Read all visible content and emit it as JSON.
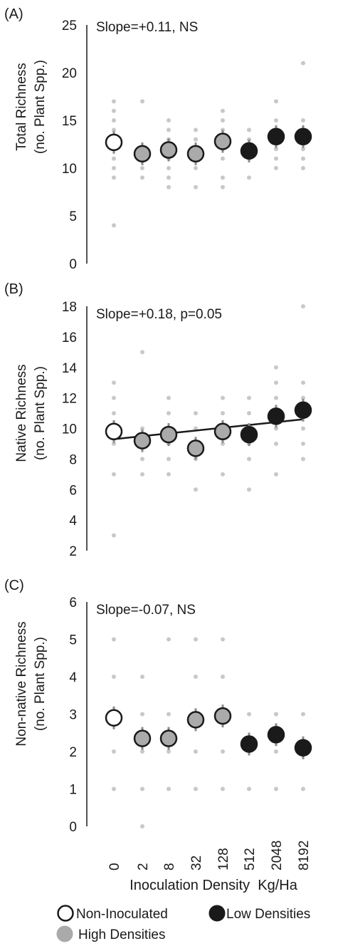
{
  "chart_data": [
    {
      "type": "scatter",
      "panel_label": "(A)",
      "ylabel_line1": "Total Richness",
      "ylabel_line2": "(no. Plant Spp.)",
      "annotation": "Slope=+0.11, NS",
      "ylim": [
        0,
        25
      ],
      "yticks": [
        "0",
        "5",
        "10",
        "15",
        "20",
        "25"
      ],
      "ytick_values": [
        0,
        5,
        10,
        15,
        20,
        25
      ],
      "categories": [
        "0",
        "2",
        "8",
        "32",
        "128",
        "512",
        "2048",
        "8192"
      ],
      "means": [
        12.7,
        11.5,
        11.9,
        11.5,
        12.8,
        11.8,
        13.3,
        13.3
      ],
      "groups": [
        "Non-Inoculated",
        "High Densities",
        "High Densities",
        "High Densities",
        "High Densities",
        "Low Densities",
        "Low Densities",
        "Low Densities"
      ],
      "raw_points": [
        [
          17,
          16,
          15,
          14,
          13,
          12,
          11,
          10,
          9,
          4
        ],
        [
          17,
          12,
          11,
          10,
          9
        ],
        [
          15,
          14,
          13,
          12,
          11,
          10,
          9,
          8
        ],
        [
          14,
          13,
          12,
          11,
          10,
          8
        ],
        [
          16,
          15,
          14,
          13,
          12,
          11,
          9,
          8
        ],
        [
          14,
          13,
          12,
          11,
          9
        ],
        [
          17,
          15,
          14,
          13,
          12,
          11,
          10
        ],
        [
          21,
          15,
          14,
          13,
          12,
          11,
          10
        ]
      ],
      "trendline": null
    },
    {
      "type": "scatter",
      "panel_label": "(B)",
      "ylabel_line1": "Native Richness",
      "ylabel_line2": "(no. Plant Spp.)",
      "annotation": "Slope=+0.18, p=0.05",
      "ylim": [
        2,
        18
      ],
      "yticks": [
        "2",
        "4",
        "6",
        "8",
        "10",
        "12",
        "14",
        "16",
        "18"
      ],
      "ytick_values": [
        2,
        4,
        6,
        8,
        10,
        12,
        14,
        16,
        18
      ],
      "categories": [
        "0",
        "2",
        "8",
        "32",
        "128",
        "512",
        "2048",
        "8192"
      ],
      "means": [
        9.8,
        9.2,
        9.6,
        8.7,
        9.8,
        9.6,
        10.8,
        11.2
      ],
      "groups": [
        "Non-Inoculated",
        "High Densities",
        "High Densities",
        "High Densities",
        "High Densities",
        "Low Densities",
        "Low Densities",
        "Low Densities"
      ],
      "raw_points": [
        [
          13,
          12,
          11,
          10,
          9,
          7,
          3
        ],
        [
          15,
          10,
          9,
          8,
          7
        ],
        [
          12,
          11,
          10,
          9,
          8,
          7
        ],
        [
          11,
          10,
          9,
          8,
          6
        ],
        [
          12,
          11,
          10,
          9,
          7
        ],
        [
          12,
          11,
          10,
          9,
          8,
          6
        ],
        [
          14,
          13,
          12,
          11,
          10,
          9,
          7
        ],
        [
          18,
          13,
          12,
          11,
          10,
          9,
          8
        ]
      ],
      "trendline": [
        9.3,
        10.6
      ]
    },
    {
      "type": "scatter",
      "panel_label": "(C)",
      "ylabel_line1": "Non-native Richness",
      "ylabel_line2": "(no. Plant Spp.)",
      "annotation": "Slope=-0.07, NS",
      "ylim": [
        0,
        6
      ],
      "yticks": [
        "0",
        "1",
        "2",
        "3",
        "4",
        "5",
        "6"
      ],
      "ytick_values": [
        0,
        1,
        2,
        3,
        4,
        5,
        6
      ],
      "categories": [
        "0",
        "2",
        "8",
        "32",
        "128",
        "512",
        "2048",
        "8192"
      ],
      "means": [
        2.9,
        2.35,
        2.35,
        2.85,
        2.95,
        2.2,
        2.45,
        2.1
      ],
      "groups": [
        "Non-Inoculated",
        "High Densities",
        "High Densities",
        "High Densities",
        "High Densities",
        "Low Densities",
        "Low Densities",
        "Low Densities"
      ],
      "raw_points": [
        [
          5,
          4,
          2,
          1
        ],
        [
          4,
          3,
          2,
          1,
          0
        ],
        [
          5,
          3,
          2,
          1
        ],
        [
          5,
          4,
          3,
          2,
          1
        ],
        [
          5,
          4,
          3,
          2,
          1
        ],
        [
          3,
          2,
          1
        ],
        [
          3,
          2,
          1
        ],
        [
          3,
          2,
          1
        ]
      ],
      "trendline": null
    }
  ],
  "x_tick_labels": [
    "0",
    "2",
    "8",
    "32",
    "128",
    "512",
    "2048",
    "8192"
  ],
  "x_axis_label": "Inoculation Density  Kg/Ha",
  "legend": {
    "non_inoculated": "Non-Inoculated",
    "low": "Low Densities",
    "high": "High Densities"
  },
  "colors": {
    "non_inoculated_fill": "#ffffff",
    "high_fill": "#aaaaaa",
    "low_fill": "#1a1a1a",
    "marker_edge": "#1a1a1a",
    "raw_point": "#c8c8c8",
    "error_bar": "#8a8a8a",
    "axis": "#1a1a1a"
  }
}
